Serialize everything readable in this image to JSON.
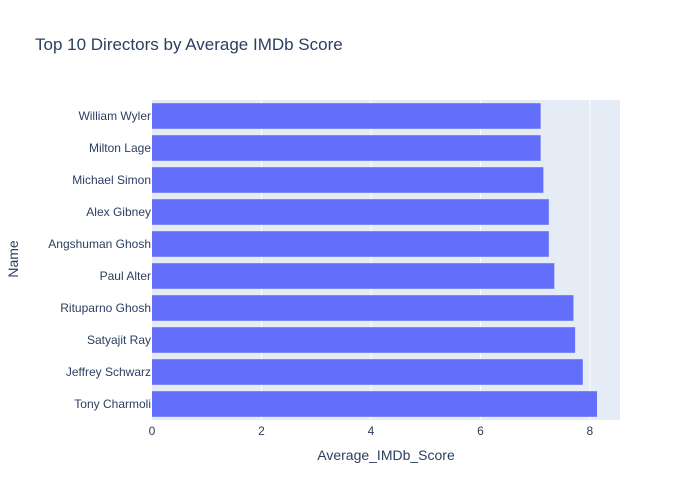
{
  "chart_data": {
    "type": "bar",
    "orientation": "horizontal",
    "title": "Top 10 Directors by Average IMDb Score",
    "xlabel": "Average_IMDb_Score",
    "ylabel": "Name",
    "xlim": [
      0,
      8.55
    ],
    "xticks": [
      "0",
      "2",
      "4",
      "6",
      "8"
    ],
    "grid": true,
    "categories": [
      "William Wyler",
      "Milton Lage",
      "Michael Simon",
      "Alex Gibney",
      "Angshuman Ghosh",
      "Paul Alter",
      "Rituparno Ghosh",
      "Satyajit Ray",
      "Jeffrey Schwarz",
      "Tony Charmoli"
    ],
    "values": [
      7.1,
      7.1,
      7.15,
      7.25,
      7.25,
      7.35,
      7.7,
      7.73,
      7.87,
      8.13
    ],
    "bar_color": "#636efa",
    "plot_bg": "#e5ecf6"
  }
}
